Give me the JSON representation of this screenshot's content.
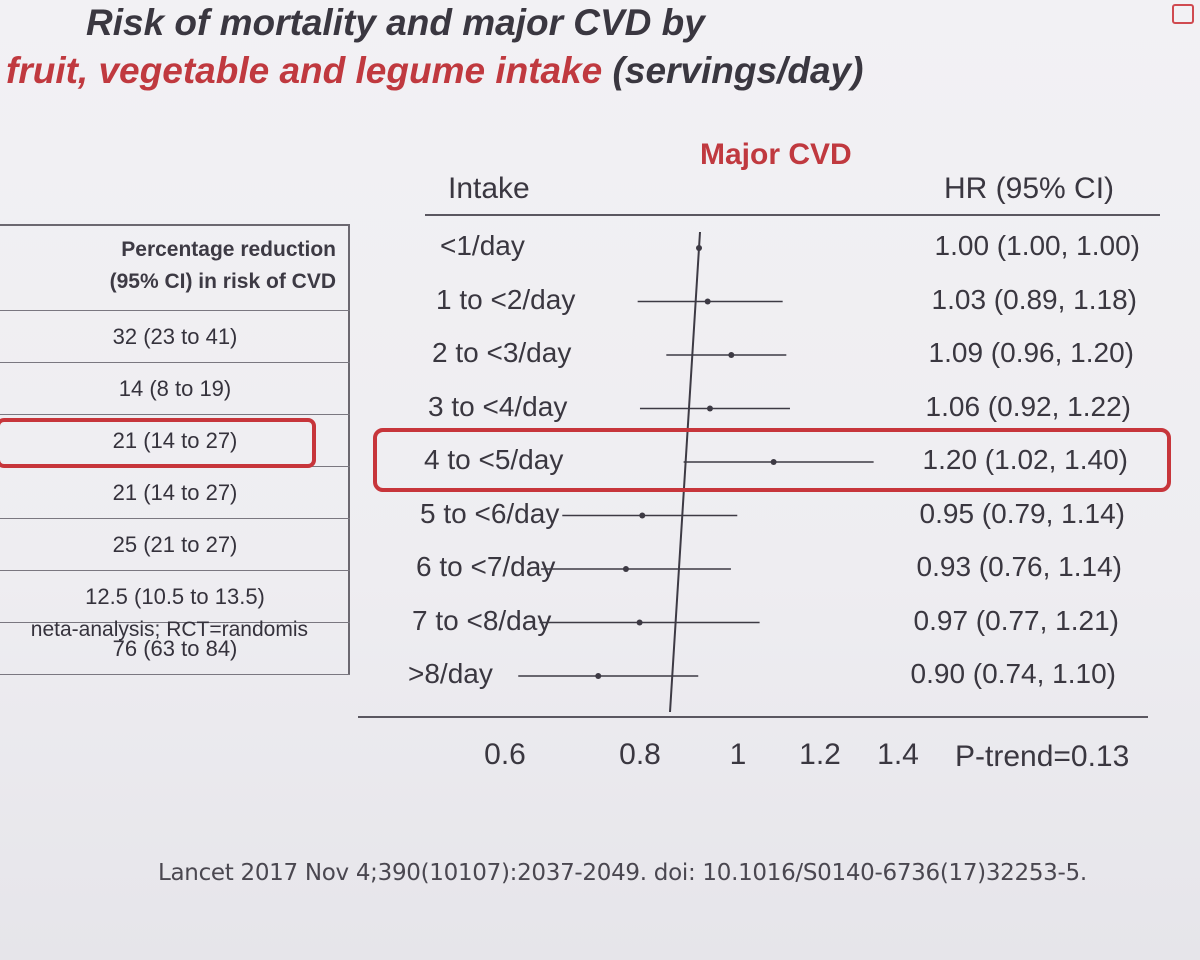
{
  "title": {
    "line1": "Risk of mortality and major CVD by",
    "line2_red": "fruit, vegetable and legume intake",
    "line2_rest": " (servings/day)"
  },
  "left_table": {
    "header_line1": "Percentage reduction",
    "header_line2": "(95% CI) in risk of CVD",
    "rows": [
      "32  (23 to 41)",
      "14  (8 to 19)",
      "21  (14 to 27)",
      "21  (14 to 27)",
      "25  (21 to 27)",
      "12.5  (10.5 to 13.5)",
      "76  (63 to 84)"
    ],
    "note": "neta-analysis; RCT=randomis"
  },
  "forest": {
    "panel_title": "Major CVD",
    "col_intake": "Intake",
    "col_hr": "HR (95% CI)",
    "p_trend": "P-trend=0.13",
    "highlight_color": "#c7353b"
  },
  "chart_data": {
    "type": "forest",
    "title": "Major CVD",
    "xlabel": "",
    "ylabel": "Intake",
    "xlim": [
      0.6,
      1.4
    ],
    "x_ticks": [
      "0.6",
      "0.8",
      "1",
      "1.2",
      "1.4"
    ],
    "reference_line": 1.0,
    "rows": [
      {
        "label": "<1/day",
        "hr": 1.0,
        "lo": 1.0,
        "hi": 1.0,
        "text": "1.00 (1.00, 1.00)"
      },
      {
        "label": "1 to <2/day",
        "hr": 1.03,
        "lo": 0.89,
        "hi": 1.18,
        "text": "1.03 (0.89, 1.18)"
      },
      {
        "label": "2 to <3/day",
        "hr": 1.09,
        "lo": 0.96,
        "hi": 1.2,
        "text": "1.09 (0.96, 1.20)"
      },
      {
        "label": "3 to <4/day",
        "hr": 1.06,
        "lo": 0.92,
        "hi": 1.22,
        "text": "1.06 (0.92, 1.22)"
      },
      {
        "label": "4 to <5/day",
        "hr": 1.2,
        "lo": 1.02,
        "hi": 1.4,
        "text": "1.20 (1.02, 1.40)"
      },
      {
        "label": "5 to <6/day",
        "hr": 0.95,
        "lo": 0.79,
        "hi": 1.14,
        "text": "0.95 (0.79, 1.14)"
      },
      {
        "label": "6 to <7/day",
        "hr": 0.93,
        "lo": 0.76,
        "hi": 1.14,
        "text": "0.93 (0.76, 1.14)"
      },
      {
        "label": "7 to <8/day",
        "hr": 0.97,
        "lo": 0.77,
        "hi": 1.21,
        "text": "0.97 (0.77, 1.21)"
      },
      {
        "label": ">8/day",
        "hr": 0.9,
        "lo": 0.74,
        "hi": 1.1,
        "text": "0.90 (0.74, 1.10)"
      }
    ],
    "highlighted_row": "4 to <5/day",
    "p_trend": "P-trend=0.13"
  },
  "citation": "Lancet 2017 Nov 4;390(10107):2037-2049. doi: 10.1016/S0140-6736(17)32253-5."
}
